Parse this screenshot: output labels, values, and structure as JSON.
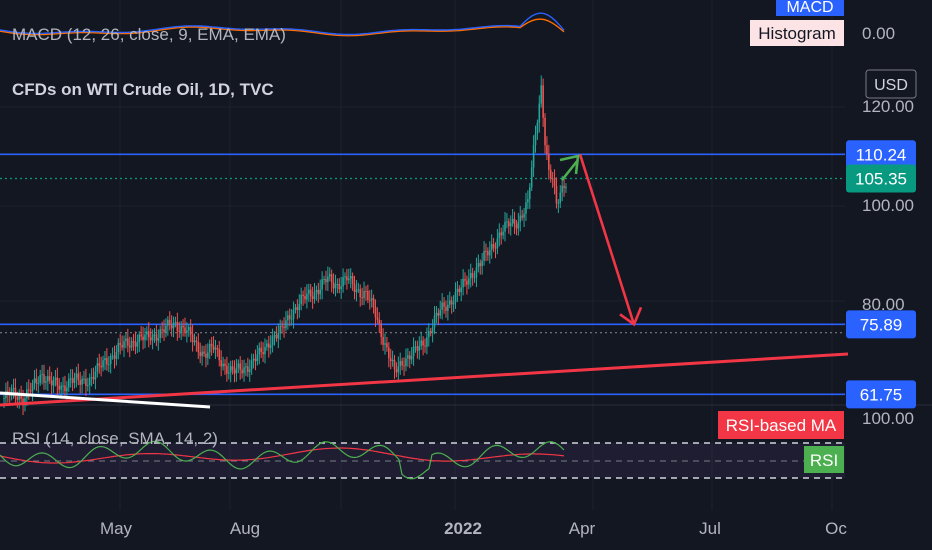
{
  "chart_data": {
    "type": "candlestick",
    "title": "CFDs on WTI Crude Oil, 1D, TVC",
    "currency": "USD",
    "x_ticks": [
      "May",
      "Aug",
      "2022",
      "Apr",
      "Jul",
      "Oc"
    ],
    "y_ticks": [
      "120.00",
      "100.00",
      "80.00"
    ],
    "price_markers": [
      {
        "label": "110.24",
        "color": "#2962ff"
      },
      {
        "label": "105.35",
        "color": "#089981"
      },
      {
        "label": "75.89",
        "color": "#2962ff"
      },
      {
        "label": "61.75",
        "color": "#2962ff"
      }
    ],
    "horizontal_levels": [
      110.24,
      75.89,
      61.75
    ],
    "dotted_levels": [
      105.35,
      74.2
    ],
    "close_series_approx": [
      [
        0,
        61
      ],
      [
        5,
        62
      ],
      [
        10,
        61
      ],
      [
        15,
        63
      ],
      [
        20,
        66
      ],
      [
        25,
        64
      ],
      [
        30,
        63
      ],
      [
        35,
        65
      ],
      [
        40,
        64
      ],
      [
        45,
        65
      ],
      [
        50,
        67
      ],
      [
        55,
        69
      ],
      [
        60,
        71
      ],
      [
        65,
        72
      ],
      [
        70,
        73
      ],
      [
        75,
        73
      ],
      [
        80,
        74
      ],
      [
        85,
        75
      ],
      [
        90,
        76
      ],
      [
        95,
        75
      ],
      [
        100,
        72
      ],
      [
        105,
        70
      ],
      [
        110,
        71
      ],
      [
        115,
        68
      ],
      [
        120,
        66
      ],
      [
        125,
        67
      ],
      [
        130,
        68
      ],
      [
        135,
        70
      ],
      [
        140,
        73
      ],
      [
        145,
        74
      ],
      [
        150,
        78
      ],
      [
        155,
        80
      ],
      [
        160,
        82
      ],
      [
        165,
        83
      ],
      [
        170,
        85
      ],
      [
        175,
        84
      ],
      [
        180,
        85
      ],
      [
        185,
        83
      ],
      [
        190,
        82
      ],
      [
        195,
        78
      ],
      [
        200,
        72
      ],
      [
        205,
        66
      ],
      [
        210,
        69
      ],
      [
        215,
        70
      ],
      [
        220,
        72
      ],
      [
        225,
        76
      ],
      [
        230,
        79
      ],
      [
        235,
        81
      ],
      [
        240,
        83
      ],
      [
        245,
        86
      ],
      [
        250,
        88
      ],
      [
        255,
        91
      ],
      [
        260,
        94
      ],
      [
        265,
        96
      ],
      [
        270,
        97
      ],
      [
        275,
        100
      ],
      [
        278,
        111
      ],
      [
        280,
        118
      ],
      [
        282,
        124
      ],
      [
        284,
        113
      ],
      [
        286,
        106
      ],
      [
        288,
        105
      ],
      [
        290,
        100
      ],
      [
        292,
        103
      ],
      [
        295,
        105
      ]
    ],
    "projection": {
      "from_price": 110.24,
      "to_price": 75.89,
      "color": "#f23645"
    },
    "trendline_color": "#f23645",
    "macd": {
      "title": "MACD (12, 26, close, 9, EMA, EMA)",
      "value": "0.00",
      "legend": [
        "MACD",
        "Histogram"
      ],
      "macd_color": "#2962ff",
      "signal_color": "#ff6d00"
    },
    "rsi": {
      "title": "RSI (14, close, SMA, 14, 2)",
      "top_value": "100.00",
      "legend": [
        "RSI-based MA",
        "RSI"
      ],
      "rsi_color": "#4caf50",
      "ma_color": "#f23645"
    }
  }
}
